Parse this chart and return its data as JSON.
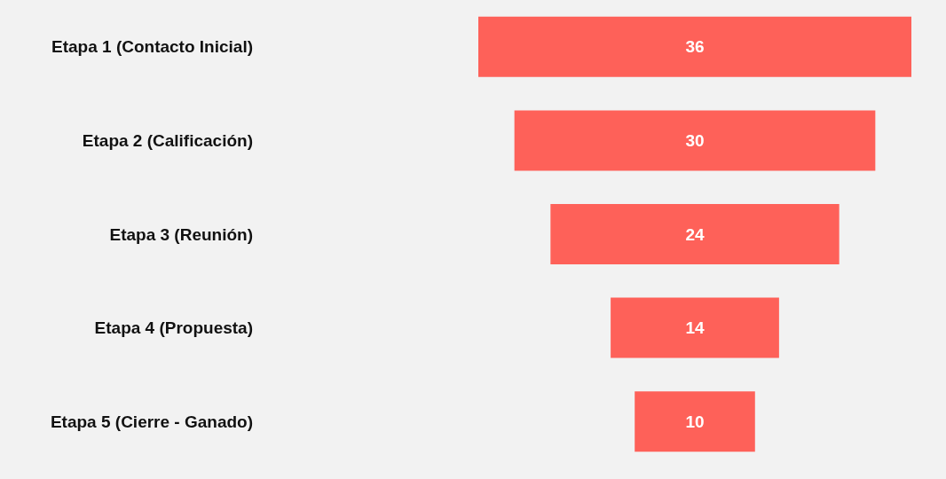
{
  "chart_data": {
    "type": "other",
    "categories": [
      "Etapa 1 (Contacto Inicial)",
      "Etapa 2 (Calificación)",
      "Etapa 3 (Reunión)",
      "Etapa 4 (Propuesta)",
      "Etapa 5 (Cierre - Ganado)"
    ],
    "values": [
      36,
      30,
      24,
      14,
      10
    ],
    "color": "#fe6159",
    "data_labels": true
  }
}
